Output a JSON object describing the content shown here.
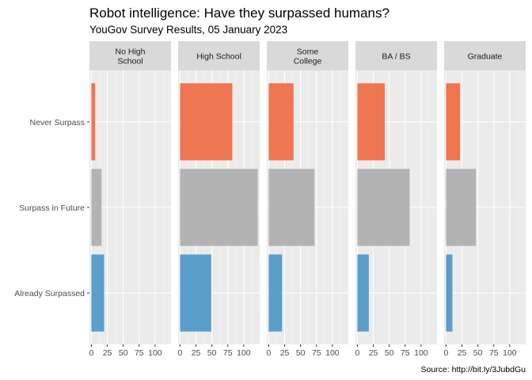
{
  "chart_data": {
    "type": "bar",
    "orientation": "horizontal",
    "title": "Robot intelligence: Have they surpassed humans?",
    "subtitle": "YouGov Survey Results, 05 January 2023",
    "caption": "Source: http://bit.ly/3JubdGu",
    "categories": [
      "Never Surpass",
      "Surpass in Future",
      "Already Surpassed"
    ],
    "facets": [
      {
        "label": [
          "No High",
          "School"
        ],
        "values": [
          6,
          16,
          20
        ]
      },
      {
        "label": [
          "High School"
        ],
        "values": [
          82,
          122,
          49
        ]
      },
      {
        "label": [
          "Some",
          "College"
        ],
        "values": [
          39,
          72,
          21
        ]
      },
      {
        "label": [
          "BA / BS"
        ],
        "values": [
          43,
          82,
          18
        ]
      },
      {
        "label": [
          "Graduate"
        ],
        "values": [
          22,
          47,
          10
        ]
      }
    ],
    "xlim": [
      -3,
      125
    ],
    "xticks": [
      0,
      25,
      50,
      75,
      100
    ],
    "grid": true,
    "colors": {
      "Never Surpass": "#ee7651",
      "Surpass in Future": "#b3b3b3",
      "Already Surpassed": "#5a9ecb",
      "panel": "#ebebeb",
      "strip": "#d9d9d9",
      "grid_major": "#ffffff",
      "grid_minor": "#f4f4f4",
      "tick": "#333333"
    }
  }
}
